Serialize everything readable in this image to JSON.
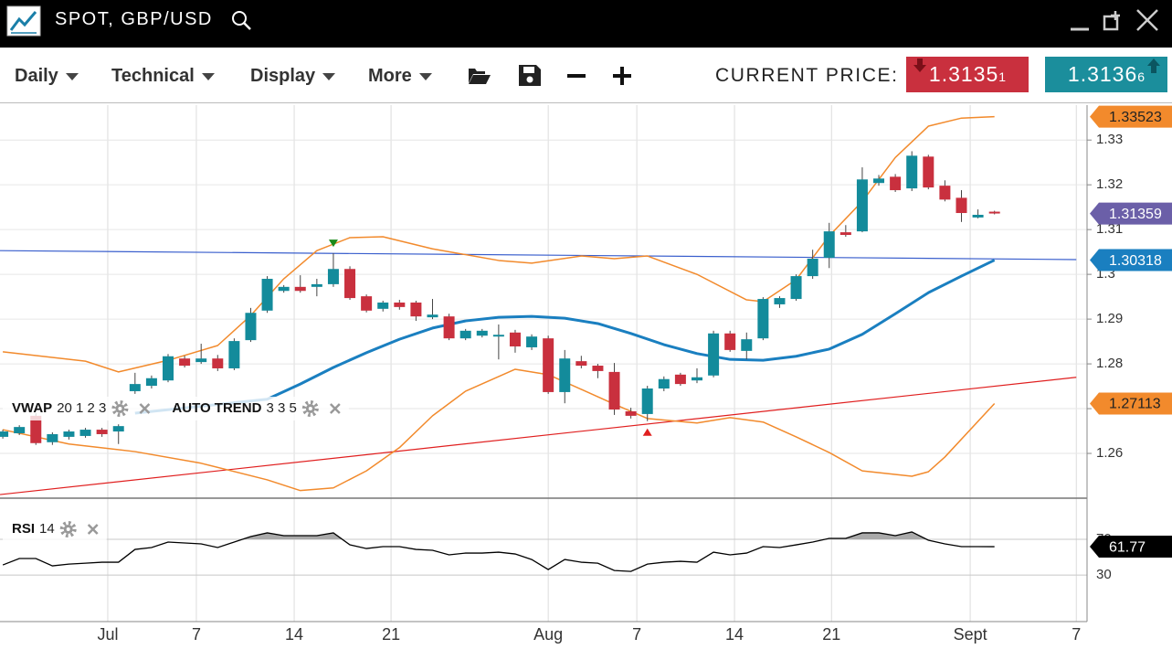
{
  "app": {
    "title": "SPOT, GBP/USD",
    "menus": [
      "Daily",
      "Technical",
      "Display",
      "More"
    ],
    "current_price_label": "CURRENT PRICE:",
    "bid": {
      "main": "1.3135",
      "pip": "1"
    },
    "ask": {
      "main": "1.3136",
      "pip": "6"
    }
  },
  "chart_data": {
    "type": "candlestick",
    "xlim": [
      -0.17,
      65.6
    ],
    "xticks": [
      {
        "value": 6.35,
        "label": "Jul"
      },
      {
        "value": 11.71,
        "label": "7"
      },
      {
        "value": 17.63,
        "label": "14"
      },
      {
        "value": 23.49,
        "label": "21"
      },
      {
        "value": 33.0,
        "label": "Aug"
      },
      {
        "value": 38.36,
        "label": "7"
      },
      {
        "value": 44.27,
        "label": "14"
      },
      {
        "value": 50.14,
        "label": "21"
      },
      {
        "value": 58.53,
        "label": "Sept"
      },
      {
        "value": 64.95,
        "label": "7"
      }
    ],
    "ylim": [
      1.25,
      1.3378
    ],
    "yticks": [
      1.26,
      1.27,
      1.28,
      1.29,
      1.3,
      1.31,
      1.32,
      1.33
    ],
    "grid": true,
    "candles": {
      "up_color": "#138b9b",
      "down_color": "#c9303e",
      "tag_color": "#6b5fa8",
      "tag_text_color": "#ffffff",
      "open": [
        1.2637,
        1.2645,
        1.2684,
        1.2625,
        1.2637,
        1.2639,
        1.2653,
        1.2649,
        1.2739,
        1.2751,
        1.2763,
        1.2812,
        1.2804,
        1.2812,
        1.279,
        1.2853,
        1.2919,
        1.2963,
        1.2972,
        1.2972,
        1.2978,
        1.3012,
        1.2951,
        1.2923,
        1.2937,
        1.2937,
        1.2904,
        1.2906,
        1.2857,
        1.2863,
        1.2861,
        1.287,
        1.2837,
        1.2857,
        1.2737,
        1.2806,
        1.2796,
        1.2782,
        1.2694,
        1.2688,
        1.2745,
        1.2776,
        1.2763,
        1.2774,
        1.2868,
        1.2829,
        1.2857,
        1.2933,
        1.2945,
        1.2996,
        1.3037,
        1.3094,
        1.3096,
        1.3204,
        1.3218,
        1.3192,
        1.3263,
        1.3198,
        1.3171,
        1.3127,
        1.314
      ],
      "high": [
        1.2653,
        1.2663,
        1.269,
        1.2647,
        1.2653,
        1.2657,
        1.2657,
        1.2665,
        1.278,
        1.2774,
        1.2822,
        1.2818,
        1.2845,
        1.282,
        1.2857,
        1.2925,
        1.2996,
        1.2976,
        1.2998,
        1.299,
        1.3047,
        1.3018,
        1.2955,
        1.2941,
        1.2943,
        1.2941,
        1.2945,
        1.2912,
        1.2878,
        1.2878,
        1.2888,
        1.2876,
        1.2866,
        1.2863,
        1.2831,
        1.2818,
        1.28,
        1.2802,
        1.2702,
        1.2751,
        1.2772,
        1.278,
        1.279,
        1.2874,
        1.2874,
        1.287,
        1.2949,
        1.2951,
        1.3,
        1.3055,
        1.3115,
        1.311,
        1.3239,
        1.3222,
        1.3224,
        1.3275,
        1.3267,
        1.321,
        1.3188,
        1.3145,
        1.3142
      ],
      "low": [
        1.2633,
        1.2641,
        1.2619,
        1.2619,
        1.2631,
        1.2635,
        1.2637,
        1.2621,
        1.2733,
        1.2745,
        1.2759,
        1.2792,
        1.28,
        1.2784,
        1.2786,
        1.2849,
        1.2914,
        1.2959,
        1.2959,
        1.2951,
        1.2972,
        1.2943,
        1.2915,
        1.2917,
        1.2921,
        1.2896,
        1.29,
        1.2853,
        1.2853,
        1.2859,
        1.281,
        1.2825,
        1.2831,
        1.2733,
        1.2712,
        1.279,
        1.2768,
        1.2686,
        1.2678,
        1.2672,
        1.2739,
        1.2751,
        1.2757,
        1.277,
        1.2827,
        1.281,
        1.2853,
        1.2925,
        1.2941,
        1.299,
        1.3014,
        1.3084,
        1.3094,
        1.3198,
        1.3184,
        1.3186,
        1.319,
        1.3163,
        1.3117,
        1.3125,
        1.3134
      ],
      "close": [
        1.2649,
        1.2659,
        1.2623,
        1.2643,
        1.2649,
        1.2653,
        1.2643,
        1.2661,
        1.2755,
        1.2768,
        1.2817,
        1.2796,
        1.2812,
        1.279,
        1.2851,
        1.2914,
        1.299,
        1.2972,
        1.2963,
        1.2978,
        1.3012,
        1.2947,
        1.2919,
        1.2937,
        1.2927,
        1.2906,
        1.291,
        1.2857,
        1.2874,
        1.2874,
        1.2865,
        1.2839,
        1.2861,
        1.2737,
        1.2812,
        1.2796,
        1.2784,
        1.2698,
        1.2684,
        1.2745,
        1.2766,
        1.2755,
        1.277,
        1.2868,
        1.2831,
        1.2855,
        1.2945,
        1.2947,
        1.2996,
        1.3035,
        1.3096,
        1.3088,
        1.3212,
        1.3214,
        1.3188,
        1.3265,
        1.3194,
        1.3167,
        1.3137,
        1.3133,
        1.31359
      ]
    },
    "overlays": [
      {
        "color": "#f28a2c",
        "width": 1.5,
        "tag_text_color": "#222222",
        "x": [
          0,
          5,
          7,
          10,
          13,
          15,
          17,
          19,
          21,
          23,
          26,
          30,
          32,
          35,
          37,
          39,
          42,
          45,
          46,
          48,
          50,
          52,
          54,
          56,
          58,
          60
        ],
        "values": [
          1.2827,
          1.2806,
          1.2782,
          1.2808,
          1.2841,
          1.2908,
          1.299,
          1.3053,
          1.3082,
          1.3084,
          1.3057,
          1.3031,
          1.3025,
          1.3041,
          1.3035,
          1.3041,
          1.3,
          1.2943,
          1.2939,
          1.2988,
          1.3086,
          1.3163,
          1.3261,
          1.3331,
          1.3349,
          1.33523
        ]
      },
      {
        "color": "#f28a2c",
        "width": 1.5,
        "tag_text_color": "#222222",
        "x": [
          0,
          4,
          8,
          12,
          16,
          18,
          20,
          22,
          24,
          26,
          28,
          31,
          33,
          35,
          37,
          39,
          42,
          44,
          46,
          48,
          50,
          52,
          55,
          56,
          57,
          60
        ],
        "values": [
          1.2653,
          1.2621,
          1.2604,
          1.2578,
          1.2541,
          1.2517,
          1.2523,
          1.2561,
          1.2613,
          1.2684,
          1.2739,
          1.2788,
          1.2776,
          1.2743,
          1.271,
          1.2678,
          1.2668,
          1.268,
          1.267,
          1.2637,
          1.2602,
          1.2561,
          1.2549,
          1.2559,
          1.2592,
          1.27113
        ]
      },
      {
        "color": "#1a7fc0",
        "width": 3,
        "tag_text_color": "#ffffff",
        "x": [
          8,
          16,
          18,
          20,
          22,
          24,
          26,
          28,
          30,
          32,
          34,
          36,
          38,
          40,
          42,
          44,
          46,
          48,
          50,
          52,
          54,
          56,
          58,
          60
        ],
        "values": [
          1.269,
          1.2721,
          1.2755,
          1.2792,
          1.2825,
          1.2855,
          1.288,
          1.2896,
          1.2904,
          1.2906,
          1.2902,
          1.289,
          1.2868,
          1.2843,
          1.2823,
          1.281,
          1.2808,
          1.2817,
          1.2833,
          1.2866,
          1.2912,
          1.2959,
          1.2996,
          1.30318
        ]
      }
    ],
    "trend_lines": [
      {
        "color": "#3a5fcd",
        "x": [
          -0.17,
          64.95
        ],
        "values": [
          1.3053,
          1.3033
        ]
      },
      {
        "color": "#e01f1f",
        "x": [
          -0.17,
          64.95
        ],
        "values": [
          1.2508,
          1.277
        ]
      }
    ],
    "signals": [
      {
        "index": 20,
        "direction": "down",
        "color": "#1a8a1a"
      },
      {
        "index": 39,
        "direction": "up",
        "color": "#e0201f"
      }
    ],
    "indicator_labels": [
      {
        "name": "VWAP",
        "params": "20 1 2 3"
      },
      {
        "name": "AUTO TREND",
        "params": "3 3 5"
      }
    ],
    "rsi": {
      "name": "RSI",
      "params": "14",
      "ylim": [
        -22,
        116
      ],
      "yticks": [
        30,
        70
      ],
      "overbought": 70,
      "color": "#000000",
      "fill": "#aaaaaa",
      "tag_color": "#000000",
      "tag_text_color": "#ffffff",
      "values": [
        41.3,
        48.5,
        48.5,
        40.3,
        42.3,
        43.3,
        44.4,
        44.4,
        58.7,
        60.8,
        66.9,
        65.9,
        64.9,
        60.8,
        66.9,
        73.1,
        77.2,
        74.1,
        74.1,
        74.1,
        77.2,
        63.8,
        59.7,
        61.8,
        61.8,
        58.7,
        57.7,
        52.6,
        54.6,
        54.6,
        55.6,
        53.6,
        47.4,
        36.2,
        47.4,
        44.4,
        43.3,
        35.1,
        34.1,
        42.3,
        44.4,
        45.4,
        44.4,
        55.6,
        52.6,
        54.6,
        61.8,
        60.8,
        63.8,
        66.9,
        71.0,
        71.0,
        77.2,
        77.2,
        74.1,
        78.2,
        69.0,
        64.9,
        61.8,
        61.8,
        61.77
      ]
    }
  }
}
